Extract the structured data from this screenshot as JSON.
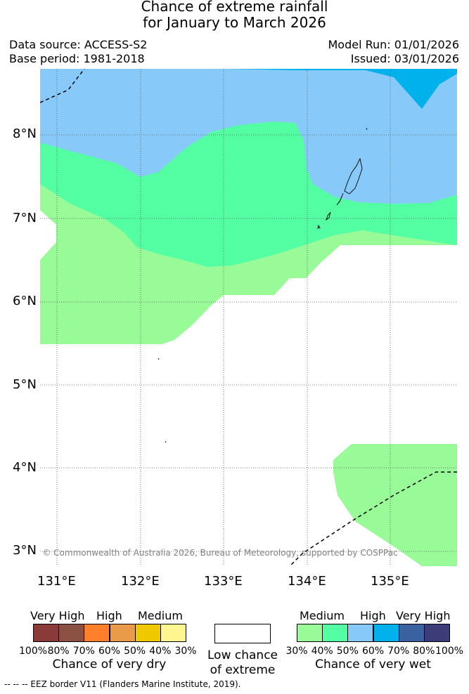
{
  "title": {
    "line1": "Chance of extreme rainfall",
    "line2": "for January to March 2026"
  },
  "meta": {
    "data_source": "Data source: ACCESS-S2",
    "base_period": "Base period: 1981-2018",
    "model_run": "Model Run: 01/01/2026",
    "issued": "Issued: 03/01/2026"
  },
  "map": {
    "lat_labels": [
      "8°N",
      "7°N",
      "6°N",
      "5°N",
      "4°N",
      "3°N"
    ],
    "lon_labels": [
      "131°E",
      "132°E",
      "133°E",
      "134°E",
      "135°E"
    ],
    "copyright": "© Commonwealth of Australia 2026, Bureau of Meteorology, supported by COSPPac",
    "zone_colors": {
      "wet_30_40": "#98fb98",
      "wet_40_50": "#54fea2",
      "wet_50_60": "#87cafa",
      "wet_60_70": "#00b1ec"
    }
  },
  "legend_dry": {
    "categories": [
      "Very High",
      "High",
      "Medium"
    ],
    "ticks": [
      "100%",
      "80%",
      "70%",
      "60%",
      "50%",
      "40%",
      "30%"
    ],
    "colors": [
      "#8b3a3a",
      "#8b5142",
      "#ff7f2a",
      "#eb9a4a",
      "#f0c800",
      "#fff68f"
    ],
    "caption": "Chance of very dry"
  },
  "legend_low": {
    "caption_line1": "Low chance",
    "caption_line2": "of extreme"
  },
  "legend_wet": {
    "categories": [
      "Medium",
      "High",
      "Very High"
    ],
    "ticks": [
      "30%",
      "40%",
      "50%",
      "60%",
      "70%",
      "80%",
      "100%"
    ],
    "colors": [
      "#98fb98",
      "#54fea2",
      "#87cafa",
      "#00b1ec",
      "#3a62a0",
      "#3c3c78"
    ],
    "caption": "Chance of very wet"
  },
  "footer": {
    "eez_note": "--  --  -- EEZ border V11 (Flanders Marine Institute, 2019)."
  }
}
